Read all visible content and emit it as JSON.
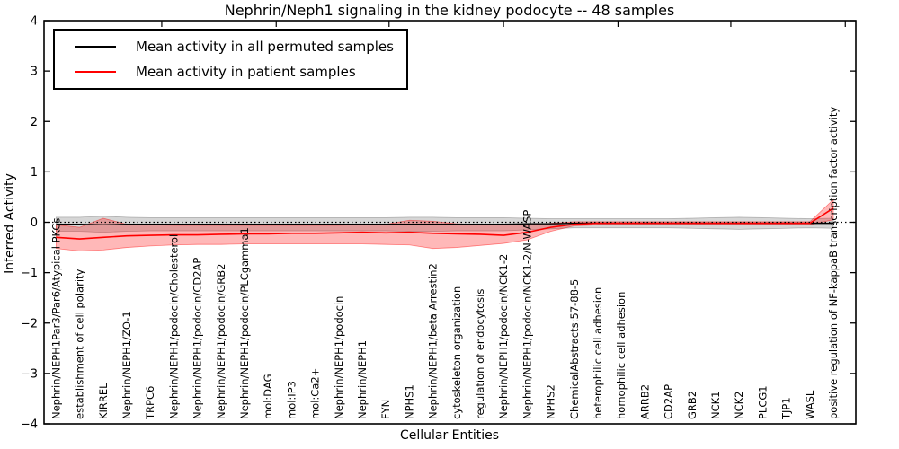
{
  "title": "Nephrin/Neph1 signaling in the kidney podocyte -- 48 samples",
  "legend": {
    "items": [
      {
        "label": "Mean activity in all permuted samples",
        "color": "#000000"
      },
      {
        "label": "Mean activity in patient samples",
        "color": "#ff0000"
      }
    ]
  },
  "axes": {
    "x_label": "Cellular Entities",
    "y_label": "Inferred Activity",
    "y_tick_labels": [
      "4",
      "3",
      "2",
      "1",
      "0",
      "−1",
      "−2",
      "−3",
      "−4"
    ],
    "y_tick_values": [
      4,
      3,
      2,
      1,
      0,
      -1,
      -2,
      -3,
      -4
    ]
  },
  "colors": {
    "permuted_line": "#000000",
    "permuted_band": "rgba(0,0,0,0.16)",
    "permuted_band_edge": "rgba(0,0,0,0.25)",
    "patient_line": "#ff0000",
    "patient_band": "rgba(255,0,0,0.28)",
    "patient_band_edge": "rgba(255,0,0,0.45)",
    "frame": "#000000",
    "background": "#ffffff"
  },
  "chart_data": {
    "type": "line",
    "title": "Nephrin/Neph1 signaling in the kidney podocyte -- 48 samples",
    "xlabel": "Cellular Entities",
    "ylabel": "Inferred Activity",
    "ylim": [
      -4,
      4
    ],
    "grid": false,
    "zero_line": {
      "value": 0,
      "style": "dotted",
      "color": "#000000"
    },
    "legend_position": "upper left",
    "categories": [
      "Nephrin/NEPH1Par3/Par6/Atypical PKCs",
      "establishment of cell polarity",
      "KIRREL",
      "Nephrin/NEPH1/ZO-1",
      "TRPC6",
      "Nephrin/NEPH1/podocin/Cholesterol",
      "Nephrin/NEPH1/podocin/CD2AP",
      "Nephrin/NEPH1/podocin/GRB2",
      "Nephrin/NEPH1/podocin/PLCgamma1",
      "mol:DAG",
      "mol:IP3",
      "mol:Ca2+",
      "Nephrin/NEPH1/podocin",
      "Nephrin/NEPH1",
      "FYN",
      "NPHS1",
      "Nephrin/NEPH1/beta Arrestin2",
      "cytoskeleton organization",
      "regulation of endocytosis",
      "Nephrin/NEPH1/podocin/NCK1-2",
      "Nephrin/NEPH1/podocin/NCK1-2/N-WASP",
      "NPHS2",
      "ChemicalAbstracts:57-88-5",
      "heterophilic cell adhesion",
      "homophilic cell adhesion",
      "ARRB2",
      "CD2AP",
      "GRB2",
      "NCK1",
      "NCK2",
      "PLCG1",
      "TJP1",
      "WASL",
      "positive regulation of NF-kappaB transcription factor activity"
    ],
    "series": [
      {
        "name": "Mean activity in all permuted samples",
        "color": "#000000",
        "values": [
          -0.04,
          -0.04,
          -0.05,
          -0.04,
          -0.04,
          -0.04,
          -0.04,
          -0.04,
          -0.04,
          -0.04,
          -0.04,
          -0.04,
          -0.04,
          -0.04,
          -0.04,
          -0.04,
          -0.04,
          -0.04,
          -0.04,
          -0.04,
          -0.03,
          -0.03,
          -0.02,
          -0.02,
          -0.02,
          -0.02,
          -0.02,
          -0.02,
          -0.02,
          -0.02,
          -0.02,
          -0.02,
          -0.02,
          -0.02
        ],
        "band_upper": [
          0.1,
          0.1,
          0.12,
          0.1,
          0.09,
          0.09,
          0.09,
          0.09,
          0.09,
          0.09,
          0.09,
          0.09,
          0.09,
          0.09,
          0.09,
          0.1,
          0.1,
          0.09,
          0.09,
          0.09,
          0.08,
          0.07,
          0.07,
          0.07,
          0.07,
          0.07,
          0.07,
          0.08,
          0.09,
          0.1,
          0.09,
          0.08,
          0.07,
          0.08
        ],
        "band_lower": [
          -0.18,
          -0.18,
          -0.2,
          -0.18,
          -0.17,
          -0.17,
          -0.17,
          -0.17,
          -0.17,
          -0.17,
          -0.17,
          -0.17,
          -0.17,
          -0.17,
          -0.17,
          -0.18,
          -0.18,
          -0.17,
          -0.17,
          -0.17,
          -0.15,
          -0.13,
          -0.11,
          -0.11,
          -0.11,
          -0.11,
          -0.11,
          -0.12,
          -0.13,
          -0.14,
          -0.13,
          -0.12,
          -0.11,
          -0.12
        ]
      },
      {
        "name": "Mean activity in patient samples",
        "color": "#ff0000",
        "values": [
          -0.3,
          -0.33,
          -0.3,
          -0.27,
          -0.26,
          -0.25,
          -0.25,
          -0.24,
          -0.23,
          -0.23,
          -0.22,
          -0.22,
          -0.21,
          -0.2,
          -0.21,
          -0.2,
          -0.22,
          -0.23,
          -0.24,
          -0.26,
          -0.2,
          -0.1,
          -0.04,
          -0.02,
          -0.02,
          -0.02,
          -0.02,
          -0.02,
          -0.02,
          -0.02,
          -0.02,
          -0.02,
          -0.02,
          0.28
        ],
        "band_upper": [
          -0.05,
          -0.1,
          0.08,
          -0.04,
          -0.05,
          -0.06,
          -0.06,
          -0.06,
          -0.06,
          -0.06,
          -0.06,
          -0.06,
          -0.06,
          -0.05,
          -0.04,
          0.04,
          0.02,
          -0.03,
          -0.04,
          -0.05,
          -0.05,
          -0.02,
          0.01,
          0.01,
          0.01,
          0.01,
          0.01,
          0.01,
          0.01,
          0.01,
          0.01,
          0.01,
          0.01,
          0.45
        ],
        "band_lower": [
          -0.52,
          -0.57,
          -0.55,
          -0.5,
          -0.47,
          -0.45,
          -0.44,
          -0.44,
          -0.43,
          -0.43,
          -0.43,
          -0.43,
          -0.43,
          -0.43,
          -0.44,
          -0.45,
          -0.52,
          -0.5,
          -0.46,
          -0.42,
          -0.35,
          -0.18,
          -0.07,
          -0.05,
          -0.05,
          -0.05,
          -0.05,
          -0.05,
          -0.05,
          -0.05,
          -0.05,
          -0.05,
          -0.05,
          0.05
        ]
      }
    ]
  }
}
